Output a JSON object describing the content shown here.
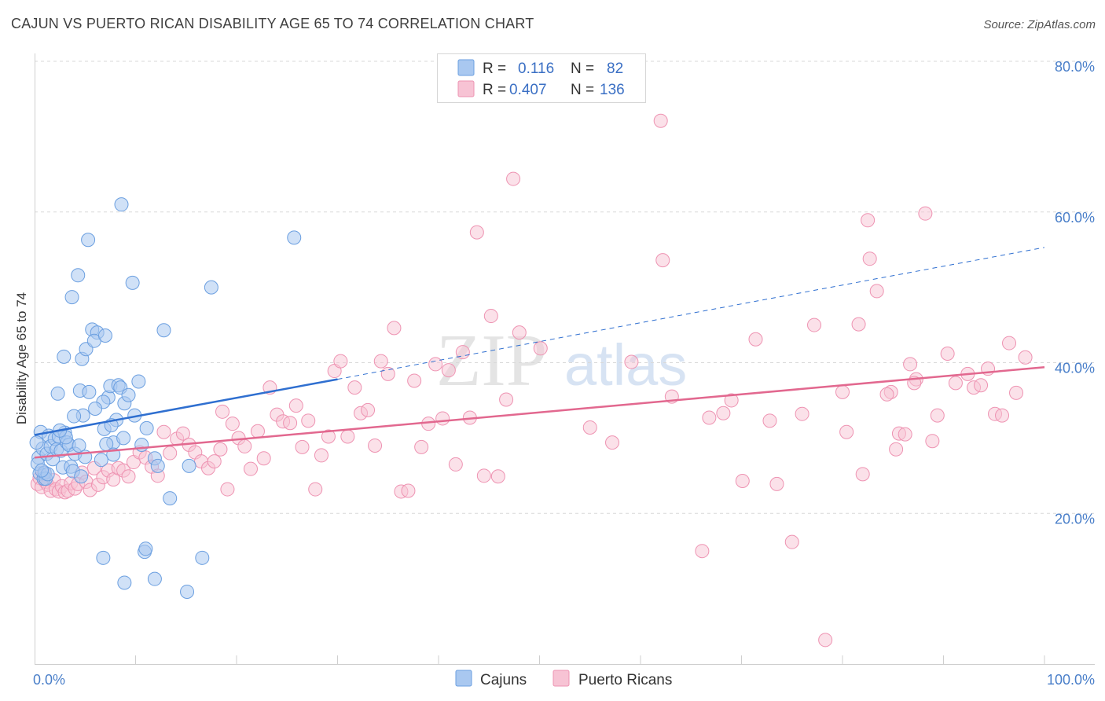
{
  "header": {
    "title": "CAJUN VS PUERTO RICAN DISABILITY AGE 65 TO 74 CORRELATION CHART",
    "source": "Source: ZipAtlas.com"
  },
  "watermark": {
    "part1": "ZIP",
    "part2": "atlas"
  },
  "legend": {
    "rows": [
      {
        "series": "Cajuns",
        "r_label": "R =",
        "r_value": "0.116",
        "n_label": "N =",
        "n_value": "82",
        "color": "#7aa9e6"
      },
      {
        "series": "Puerto Ricans",
        "r_label": "R =",
        "r_value": "0.407",
        "n_label": "N =",
        "n_value": "136",
        "color": "#f29bb8"
      }
    ]
  },
  "bottom_legend": {
    "items": [
      "Cajuns",
      "Puerto Ricans"
    ]
  },
  "colors": {
    "cajun_fill": "#a9c8f0",
    "cajun_stroke": "#6b9fe0",
    "cajun_line": "#2f6fd0",
    "pr_fill": "#f7c3d4",
    "pr_stroke": "#ee93b2",
    "pr_line": "#e2688f",
    "tick_text": "#4a7fc9",
    "grid": "#d9d9d9"
  },
  "chart_data": {
    "type": "scatter",
    "title": "CAJUN VS PUERTO RICAN DISABILITY AGE 65 TO 74 CORRELATION CHART",
    "xlabel": "",
    "ylabel": "Disability Age 65 to 74",
    "xlim": [
      0,
      100
    ],
    "ylim": [
      0,
      80
    ],
    "x_tick_labels": [
      "0.0%",
      "100.0%"
    ],
    "y_ticks": [
      20,
      40,
      60,
      80
    ],
    "y_tick_labels": [
      "20.0%",
      "40.0%",
      "60.0%",
      "80.0%"
    ],
    "series": [
      {
        "name": "Cajuns",
        "R": 0.116,
        "N": 82,
        "trend": {
          "x": [
            0,
            30
          ],
          "y": [
            30.4,
            37.8
          ],
          "dashed_extension": {
            "x": [
              30,
              100
            ],
            "y": [
              37.8,
              55.3
            ]
          }
        },
        "points": [
          [
            0.6,
            30.8
          ],
          [
            0.4,
            27.4
          ],
          [
            0.8,
            28.6
          ],
          [
            0.5,
            25.3
          ],
          [
            0.3,
            26.6
          ],
          [
            0.9,
            24.6
          ],
          [
            1.2,
            27.9
          ],
          [
            1.4,
            30.3
          ],
          [
            1.6,
            28.9
          ],
          [
            1.8,
            27.2
          ],
          [
            2.0,
            29.9
          ],
          [
            2.2,
            28.5
          ],
          [
            2.4,
            30.2
          ],
          [
            2.6,
            28.3
          ],
          [
            2.8,
            26.1
          ],
          [
            3.0,
            30.7
          ],
          [
            3.2,
            29.4
          ],
          [
            3.4,
            29.1
          ],
          [
            3.6,
            26.2
          ],
          [
            3.8,
            25.6
          ],
          [
            4.0,
            27.9
          ],
          [
            4.4,
            29.0
          ],
          [
            4.6,
            24.9
          ],
          [
            5.0,
            27.5
          ],
          [
            1.0,
            25.4
          ],
          [
            1.1,
            24.6
          ],
          [
            1.3,
            25.2
          ],
          [
            0.7,
            25.7
          ],
          [
            2.3,
            35.9
          ],
          [
            2.9,
            40.8
          ],
          [
            3.7,
            48.7
          ],
          [
            4.3,
            51.6
          ],
          [
            4.7,
            40.5
          ],
          [
            5.3,
            56.3
          ],
          [
            5.1,
            41.8
          ],
          [
            5.7,
            44.4
          ],
          [
            6.2,
            44.0
          ],
          [
            5.9,
            42.9
          ],
          [
            7.0,
            43.6
          ],
          [
            7.3,
            35.4
          ],
          [
            7.5,
            36.9
          ],
          [
            7.8,
            29.4
          ],
          [
            8.3,
            37.0
          ],
          [
            8.5,
            36.7
          ],
          [
            8.9,
            34.6
          ],
          [
            8.1,
            32.4
          ],
          [
            9.3,
            35.7
          ],
          [
            10.3,
            37.5
          ],
          [
            11.1,
            31.3
          ],
          [
            12.8,
            44.3
          ],
          [
            8.6,
            61.0
          ],
          [
            9.7,
            50.6
          ],
          [
            17.5,
            50.0
          ],
          [
            25.7,
            56.6
          ],
          [
            6.8,
            34.8
          ],
          [
            6.0,
            33.9
          ],
          [
            4.8,
            33.0
          ],
          [
            3.9,
            32.9
          ],
          [
            4.5,
            36.3
          ],
          [
            5.4,
            36.1
          ],
          [
            7.1,
            29.2
          ],
          [
            8.8,
            30.0
          ],
          [
            9.9,
            33.0
          ],
          [
            10.6,
            29.1
          ],
          [
            11.9,
            27.3
          ],
          [
            12.2,
            26.3
          ],
          [
            13.4,
            22.0
          ],
          [
            15.3,
            26.3
          ],
          [
            7.8,
            27.8
          ],
          [
            6.6,
            27.1
          ],
          [
            6.9,
            31.2
          ],
          [
            7.6,
            31.7
          ],
          [
            3.1,
            30.1
          ],
          [
            2.5,
            31.0
          ],
          [
            6.8,
            14.1
          ],
          [
            8.9,
            10.8
          ],
          [
            10.9,
            14.9
          ],
          [
            11.0,
            15.3
          ],
          [
            11.9,
            11.3
          ],
          [
            15.1,
            9.6
          ],
          [
            16.6,
            14.1
          ],
          [
            0.2,
            29.4
          ]
        ]
      },
      {
        "name": "Puerto Ricans",
        "R": 0.407,
        "N": 136,
        "trend": {
          "x": [
            0,
            100
          ],
          "y": [
            27.4,
            39.4
          ]
        },
        "points": [
          [
            0.3,
            23.9
          ],
          [
            0.5,
            24.7
          ],
          [
            0.7,
            23.5
          ],
          [
            0.9,
            25.4
          ],
          [
            1.1,
            24.2
          ],
          [
            1.3,
            23.8
          ],
          [
            1.6,
            23.0
          ],
          [
            1.9,
            24.4
          ],
          [
            2.1,
            23.2
          ],
          [
            2.4,
            22.9
          ],
          [
            2.7,
            23.6
          ],
          [
            3.0,
            22.8
          ],
          [
            3.3,
            23.0
          ],
          [
            3.6,
            24.0
          ],
          [
            4.0,
            23.3
          ],
          [
            4.3,
            23.9
          ],
          [
            4.7,
            25.4
          ],
          [
            5.1,
            24.2
          ],
          [
            5.5,
            23.1
          ],
          [
            5.9,
            26.0
          ],
          [
            6.3,
            23.8
          ],
          [
            6.8,
            24.8
          ],
          [
            7.3,
            25.7
          ],
          [
            7.8,
            24.5
          ],
          [
            8.3,
            26.0
          ],
          [
            8.8,
            25.7
          ],
          [
            9.3,
            24.9
          ],
          [
            9.8,
            26.8
          ],
          [
            10.4,
            28.1
          ],
          [
            11.0,
            27.4
          ],
          [
            11.6,
            26.2
          ],
          [
            12.2,
            25.0
          ],
          [
            12.8,
            30.8
          ],
          [
            13.4,
            28.0
          ],
          [
            14.1,
            29.9
          ],
          [
            14.7,
            30.6
          ],
          [
            15.3,
            29.1
          ],
          [
            15.9,
            28.1
          ],
          [
            16.5,
            26.9
          ],
          [
            17.2,
            26.0
          ],
          [
            17.8,
            26.9
          ],
          [
            18.4,
            28.5
          ],
          [
            18.6,
            33.5
          ],
          [
            19.1,
            23.2
          ],
          [
            19.6,
            31.9
          ],
          [
            20.2,
            30.0
          ],
          [
            20.8,
            28.9
          ],
          [
            21.4,
            25.9
          ],
          [
            22.1,
            30.9
          ],
          [
            22.7,
            27.3
          ],
          [
            23.3,
            36.7
          ],
          [
            24.0,
            33.1
          ],
          [
            24.6,
            32.2
          ],
          [
            25.3,
            32.0
          ],
          [
            25.9,
            34.3
          ],
          [
            26.5,
            28.8
          ],
          [
            27.1,
            32.3
          ],
          [
            27.8,
            23.2
          ],
          [
            28.4,
            27.7
          ],
          [
            29.1,
            30.2
          ],
          [
            29.7,
            38.9
          ],
          [
            30.3,
            40.2
          ],
          [
            31.0,
            30.2
          ],
          [
            31.7,
            36.7
          ],
          [
            32.3,
            33.3
          ],
          [
            33.0,
            33.7
          ],
          [
            33.7,
            29.0
          ],
          [
            34.3,
            40.2
          ],
          [
            35.0,
            38.5
          ],
          [
            35.6,
            44.6
          ],
          [
            36.3,
            22.9
          ],
          [
            37.0,
            23.0
          ],
          [
            37.6,
            37.6
          ],
          [
            38.3,
            28.8
          ],
          [
            39.0,
            31.9
          ],
          [
            39.7,
            39.8
          ],
          [
            40.4,
            32.6
          ],
          [
            41.0,
            39.0
          ],
          [
            41.7,
            26.5
          ],
          [
            42.4,
            41.4
          ],
          [
            43.1,
            32.7
          ],
          [
            43.8,
            57.3
          ],
          [
            44.5,
            25.0
          ],
          [
            45.2,
            46.2
          ],
          [
            45.9,
            24.9
          ],
          [
            46.7,
            35.1
          ],
          [
            47.4,
            64.4
          ],
          [
            48.0,
            44.0
          ],
          [
            50.1,
            41.9
          ],
          [
            55.0,
            31.4
          ],
          [
            57.2,
            29.4
          ],
          [
            59.1,
            40.1
          ],
          [
            62.2,
            53.6
          ],
          [
            62.0,
            72.1
          ],
          [
            63.1,
            35.5
          ],
          [
            66.1,
            15.0
          ],
          [
            68.2,
            33.3
          ],
          [
            69.0,
            35.0
          ],
          [
            70.1,
            24.3
          ],
          [
            71.4,
            43.1
          ],
          [
            73.5,
            23.9
          ],
          [
            75.0,
            16.2
          ],
          [
            76.0,
            33.2
          ],
          [
            77.2,
            45.0
          ],
          [
            78.3,
            3.2
          ],
          [
            80.0,
            36.1
          ],
          [
            80.4,
            30.8
          ],
          [
            81.6,
            45.1
          ],
          [
            82.0,
            25.2
          ],
          [
            82.5,
            58.9
          ],
          [
            82.7,
            53.8
          ],
          [
            83.4,
            49.5
          ],
          [
            84.8,
            36.1
          ],
          [
            85.3,
            28.5
          ],
          [
            85.6,
            30.6
          ],
          [
            86.2,
            30.5
          ],
          [
            87.3,
            37.8
          ],
          [
            88.2,
            59.8
          ],
          [
            88.9,
            29.6
          ],
          [
            89.4,
            33.0
          ],
          [
            90.4,
            41.2
          ],
          [
            91.2,
            37.3
          ],
          [
            92.4,
            38.5
          ],
          [
            93.0,
            36.7
          ],
          [
            93.7,
            37.0
          ],
          [
            94.4,
            39.2
          ],
          [
            95.1,
            33.2
          ],
          [
            95.8,
            33.0
          ],
          [
            96.5,
            42.6
          ],
          [
            97.2,
            36.0
          ],
          [
            98.1,
            40.7
          ],
          [
            87.1,
            37.3
          ],
          [
            86.7,
            39.8
          ],
          [
            84.4,
            35.8
          ],
          [
            72.8,
            32.3
          ],
          [
            66.8,
            32.7
          ]
        ]
      }
    ]
  }
}
